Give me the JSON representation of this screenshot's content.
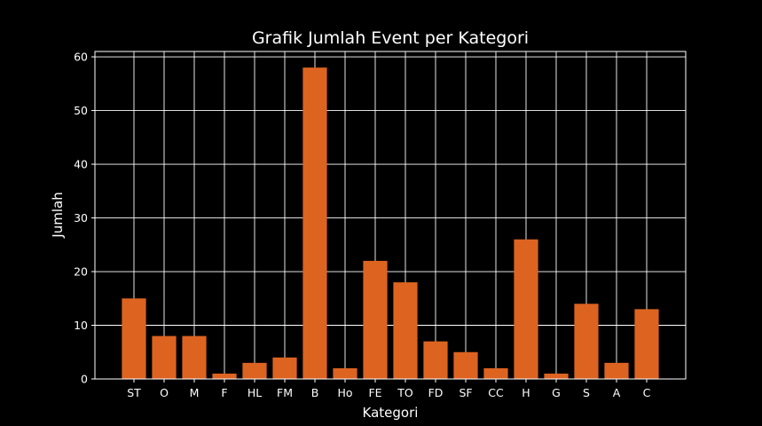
{
  "chart_data": {
    "type": "bar",
    "title": "Grafik Jumlah Event per Kategori",
    "xlabel": "Kategori",
    "ylabel": "Jumlah",
    "categories": [
      "ST",
      "O",
      "M",
      "F",
      "HL",
      "FM",
      "B",
      "Ho",
      "FE",
      "TO",
      "FD",
      "SF",
      "CC",
      "H",
      "G",
      "S",
      "A",
      "C"
    ],
    "values": [
      15,
      8,
      8,
      1,
      3,
      4,
      58,
      2,
      22,
      18,
      7,
      5,
      2,
      26,
      1,
      14,
      3,
      13
    ],
    "ylim": [
      0,
      61
    ],
    "yticks": [
      0,
      10,
      20,
      30,
      40,
      50,
      60
    ],
    "grid": true,
    "legend": "none",
    "colors": {
      "background": "#000000",
      "bar": "#dd6320",
      "axis": "#ffffff",
      "grid": "#ffffff",
      "text": "#ffffff"
    }
  }
}
